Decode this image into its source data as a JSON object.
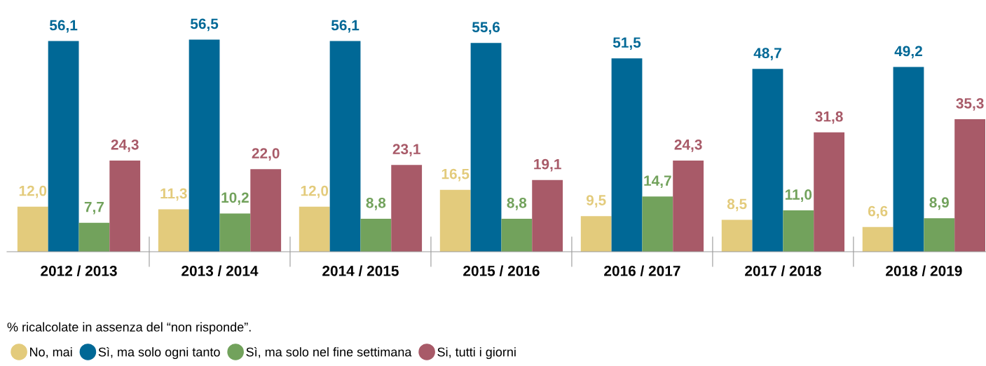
{
  "chart_data": {
    "type": "bar",
    "categories": [
      "2012 / 2013",
      "2013 / 2014",
      "2014 / 2015",
      "2015 / 2016",
      "2016 / 2017",
      "2017 / 2018",
      "2018 / 2019"
    ],
    "series": [
      {
        "name": "No, mai",
        "color": "#e3cb7c",
        "values": [
          12.0,
          11.3,
          12.0,
          16.5,
          9.5,
          8.5,
          6.6
        ],
        "value_labels": [
          "12,0",
          "11,3",
          "12,0",
          "16,5",
          "9,5",
          "8,5",
          "6,6"
        ]
      },
      {
        "name": "Sì, ma solo ogni tanto",
        "color": "#006896",
        "values": [
          56.1,
          56.5,
          56.1,
          55.6,
          51.5,
          48.7,
          49.2
        ],
        "value_labels": [
          "56,1",
          "56,5",
          "56,1",
          "55,6",
          "51,5",
          "48,7",
          "49,2"
        ]
      },
      {
        "name": "Sì, ma solo nel fine settimana",
        "color": "#72a25c",
        "values": [
          7.7,
          10.2,
          8.8,
          8.8,
          14.7,
          11.0,
          8.9
        ],
        "value_labels": [
          "7,7",
          "10,2",
          "8,8",
          "8,8",
          "14,7",
          "11,0",
          "8,9"
        ]
      },
      {
        "name": "Si, tutti i giorni",
        "color": "#a85a68",
        "values": [
          24.3,
          22.0,
          23.1,
          19.1,
          24.3,
          31.8,
          35.3
        ],
        "value_labels": [
          "24,3",
          "22,0",
          "23,1",
          "19,1",
          "24,3",
          "31,8",
          "35,3"
        ]
      }
    ],
    "annotations": [
      "% ricalcolate in assenza del “non risponde”."
    ],
    "legend": "bottom left",
    "grid": false
  }
}
